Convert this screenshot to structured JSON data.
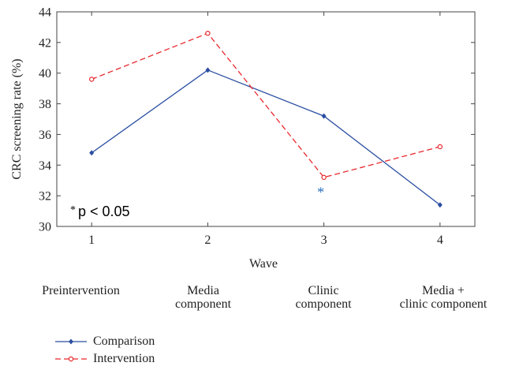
{
  "chart_data": {
    "type": "line",
    "xlabel": "Wave",
    "ylabel": "CRC screening rate (%)",
    "x": [
      1,
      2,
      3,
      4
    ],
    "xlim": [
      0.7,
      4.3
    ],
    "ylim": [
      30,
      44
    ],
    "yticks": [
      30,
      32,
      34,
      36,
      38,
      40,
      42,
      44
    ],
    "grid": false,
    "series": [
      {
        "name": "Comparison",
        "values": [
          34.8,
          40.2,
          37.2,
          31.4
        ],
        "color": "#2b4ea2",
        "dash": "solid",
        "marker": "diamond"
      },
      {
        "name": "Intervention",
        "values": [
          39.6,
          42.6,
          33.2,
          35.2
        ],
        "color": "#e8292e",
        "dash": "dashed",
        "marker": "circle"
      }
    ],
    "annotations": {
      "significance_marker": {
        "text": "*",
        "x": 3,
        "y": 32.4,
        "color": "#2b6fc0"
      },
      "note_star": "*",
      "note_text": "p < 0.05"
    },
    "phases": [
      "Preintervention",
      "Media\ncomponent",
      "Clinic\ncomponent",
      "Media +\nclinic component"
    ],
    "legend_placement": "bottom-left"
  }
}
